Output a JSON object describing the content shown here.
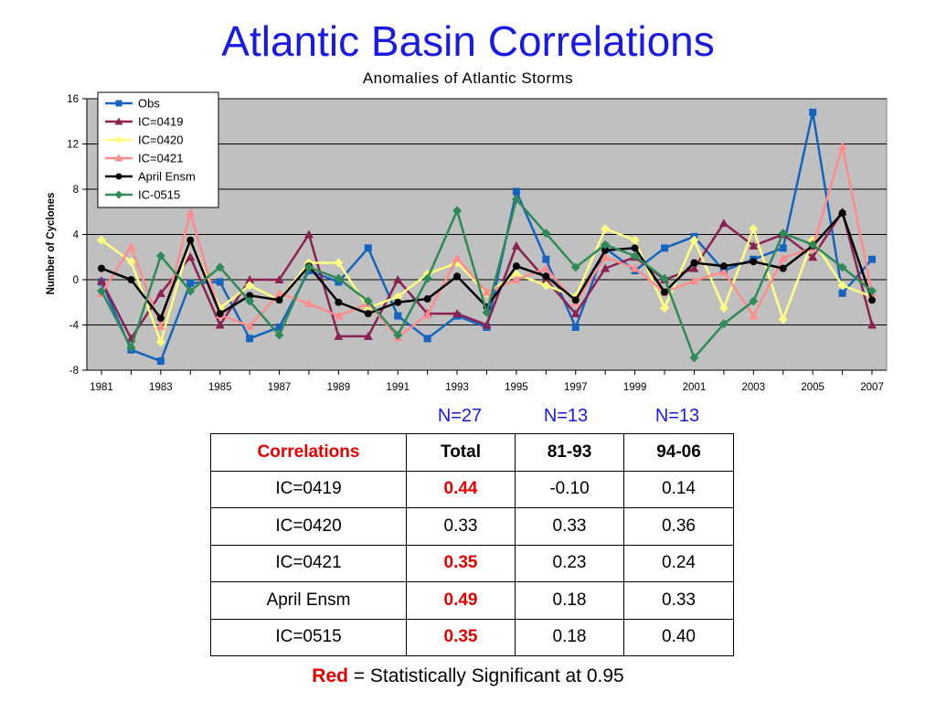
{
  "title": "Atlantic Basin Correlations",
  "chart_data": {
    "type": "line",
    "subtitle": "Anomalies of Atlantic Storms",
    "xlabel": "",
    "ylabel": "Number of Cyclones",
    "ylim": [
      -8,
      16
    ],
    "yticks": [
      -8,
      -4,
      0,
      4,
      8,
      12,
      16
    ],
    "xticks": [
      1981,
      1983,
      1985,
      1987,
      1989,
      1991,
      1993,
      1995,
      1997,
      1999,
      2001,
      2003,
      2005,
      2007
    ],
    "x": [
      1981,
      1982,
      1983,
      1984,
      1985,
      1986,
      1987,
      1988,
      1989,
      1990,
      1991,
      1992,
      1993,
      1994,
      1995,
      1996,
      1997,
      1998,
      1999,
      2000,
      2001,
      2002,
      2003,
      2004,
      2005,
      2006,
      2007
    ],
    "grid": true,
    "legend_position": "top-left",
    "series": [
      {
        "name": "Obs",
        "color": "#1565c0",
        "marker": "square",
        "values": [
          -0.2,
          -6.2,
          -7.2,
          -0.3,
          -0.2,
          -5.2,
          -4.2,
          0.8,
          -0.2,
          2.8,
          -3.2,
          -5.2,
          -3.2,
          -4.2,
          7.8,
          1.8,
          -4.2,
          2.8,
          0.8,
          2.8,
          3.8,
          0.8,
          1.8,
          2.8,
          14.8,
          -1.2,
          1.8
        ]
      },
      {
        "name": "IC=0419",
        "color": "#8b2252",
        "marker": "triangle",
        "values": [
          -0.1,
          -5.2,
          -1.2,
          2.0,
          -4.0,
          0.0,
          0.0,
          4.0,
          -5.0,
          -5.0,
          0.0,
          -3.0,
          -3.0,
          -4.0,
          3.0,
          0.0,
          -3.0,
          1.0,
          2.0,
          0.0,
          1.0,
          5.0,
          3.0,
          4.0,
          2.0,
          6.0,
          -4.0
        ]
      },
      {
        "name": "IC=0420",
        "color": "#ffff80",
        "marker": "diamond",
        "values": [
          3.5,
          1.6,
          -5.5,
          3.5,
          -2.5,
          -0.5,
          -1.8,
          1.5,
          1.5,
          -2.5,
          -1.5,
          0.5,
          1.5,
          -1.2,
          0.5,
          -0.5,
          -1.5,
          4.5,
          3.5,
          -2.5,
          3.5,
          -2.5,
          4.5,
          -3.5,
          3.5,
          -0.5,
          -1.5
        ]
      },
      {
        "name": "IC=0421",
        "color": "#ff8c8c",
        "marker": "triangle",
        "values": [
          -1.2,
          2.9,
          -4.1,
          5.9,
          -3.1,
          -4.1,
          -1.2,
          -2.1,
          -3.2,
          -2.1,
          -5.1,
          -3.1,
          1.9,
          -1.1,
          0.0,
          1.0,
          -2.0,
          2.0,
          1.0,
          -1.1,
          -0.1,
          0.7,
          -3.2,
          1.9,
          2.8,
          11.8,
          -1.2
        ]
      },
      {
        "name": "April Ensm",
        "color": "#000000",
        "marker": "circle",
        "values": [
          1.0,
          0.0,
          -3.4,
          3.5,
          -3.0,
          -1.4,
          -1.8,
          1.2,
          -2.0,
          -3.0,
          -2.0,
          -1.7,
          0.3,
          -2.4,
          1.2,
          0.3,
          -1.8,
          2.6,
          2.8,
          -1.1,
          1.5,
          1.2,
          1.6,
          1.0,
          3.0,
          5.9,
          -1.8
        ]
      },
      {
        "name": "IC-0515",
        "color": "#2e8b57",
        "marker": "diamond",
        "values": [
          -1.0,
          -6.0,
          2.1,
          -1.0,
          1.1,
          -1.9,
          -4.9,
          1.1,
          0.1,
          -1.9,
          -4.9,
          0.1,
          6.1,
          -2.9,
          7.1,
          4.1,
          1.1,
          3.1,
          2.1,
          0.1,
          -6.9,
          -3.9,
          -1.9,
          4.1,
          3.1,
          1.1,
          -1.0
        ]
      }
    ]
  },
  "table": {
    "n_labels": [
      "N=27",
      "N=13",
      "N=13"
    ],
    "header": [
      "Correlations",
      "Total",
      "81-93",
      "94-06"
    ],
    "rows": [
      {
        "name": "IC=0419",
        "total": "0.44",
        "p1": "-0.10",
        "p2": "0.14",
        "significant": true
      },
      {
        "name": "IC=0420",
        "total": "0.33",
        "p1": "0.33",
        "p2": "0.36",
        "significant": false
      },
      {
        "name": "IC=0421",
        "total": "0.35",
        "p1": "0.23",
        "p2": "0.24",
        "significant": true
      },
      {
        "name": "April Ensm",
        "total": "0.49",
        "p1": "0.18",
        "p2": "0.33",
        "significant": true
      },
      {
        "name": "IC=0515",
        "total": "0.35",
        "p1": "0.18",
        "p2": "0.40",
        "significant": true
      }
    ],
    "significant_color": "#e60000"
  },
  "footnote": {
    "red_word": "Red",
    "rest": " = Statistically Significant at 0.95"
  }
}
